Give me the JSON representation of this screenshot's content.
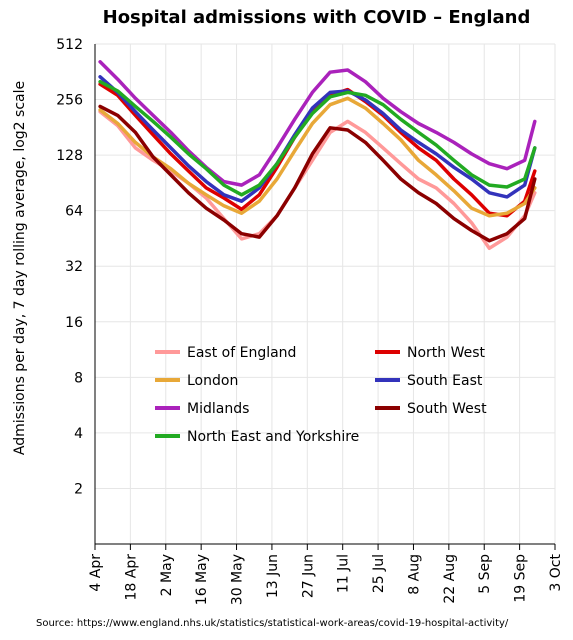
{
  "chart_data": {
    "type": "line",
    "title": "Hospital admissions with COVID – England",
    "ylabel": "Admissions per day, 7 day rolling average, log2 scale",
    "xlabel": "",
    "source": "Source: https://www.england.nhs.uk/statistics/statistical-work-areas/covid-19-hospital-activity/",
    "y_scale": "log2",
    "ylim": [
      1,
      512
    ],
    "y_ticks": [
      2,
      4,
      8,
      16,
      32,
      64,
      128,
      256,
      512
    ],
    "x_ticks": [
      "4 Apr",
      "18 Apr",
      "2 May",
      "16 May",
      "30 May",
      "13 Jun",
      "27 Jun",
      "11 Jul",
      "25 Jul",
      "8 Aug",
      "22 Aug",
      "5 Sep",
      "19 Sep",
      "3 Oct"
    ],
    "xlim": [
      "4 Apr",
      "3 Oct"
    ],
    "grid": true,
    "legend_placement": "center",
    "x": [
      "6 Apr",
      "13 Apr",
      "20 Apr",
      "27 Apr",
      "4 May",
      "11 May",
      "18 May",
      "25 May",
      "1 Jun",
      "8 Jun",
      "15 Jun",
      "22 Jun",
      "29 Jun",
      "6 Jul",
      "13 Jul",
      "20 Jul",
      "27 Jul",
      "3 Aug",
      "10 Aug",
      "17 Aug",
      "24 Aug",
      "31 Aug",
      "7 Sep",
      "14 Sep",
      "21 Sep",
      "25 Sep"
    ],
    "series": [
      {
        "name": "East of England",
        "color": "#ff9999",
        "values": [
          220,
          185,
          140,
          120,
          105,
          90,
          75,
          58,
          45,
          48,
          60,
          85,
          120,
          170,
          195,
          170,
          140,
          115,
          95,
          85,
          70,
          55,
          40,
          46,
          60,
          80
        ]
      },
      {
        "name": "North West",
        "color": "#dd0000",
        "values": [
          310,
          270,
          210,
          165,
          130,
          105,
          85,
          75,
          65,
          78,
          110,
          160,
          220,
          270,
          290,
          250,
          210,
          170,
          140,
          120,
          95,
          78,
          62,
          60,
          72,
          105
        ]
      },
      {
        "name": "London",
        "color": "#e8a838",
        "values": [
          225,
          190,
          150,
          125,
          108,
          90,
          78,
          68,
          62,
          72,
          95,
          135,
          190,
          240,
          260,
          230,
          190,
          155,
          120,
          100,
          82,
          66,
          60,
          62,
          70,
          85
        ]
      },
      {
        "name": "South East",
        "color": "#3333bb",
        "values": [
          340,
          280,
          220,
          175,
          140,
          112,
          92,
          78,
          72,
          85,
          115,
          165,
          230,
          280,
          285,
          255,
          215,
          175,
          150,
          130,
          110,
          95,
          80,
          76,
          88,
          140
        ]
      },
      {
        "name": "Midlands",
        "color": "#aa22bb",
        "values": [
          410,
          330,
          260,
          210,
          170,
          135,
          110,
          92,
          88,
          100,
          140,
          200,
          280,
          360,
          370,
          320,
          260,
          220,
          190,
          170,
          150,
          130,
          115,
          108,
          120,
          195
        ]
      },
      {
        "name": "South West",
        "color": "#8b0000",
        "values": [
          235,
          210,
          170,
          125,
          100,
          80,
          66,
          57,
          48,
          46,
          60,
          85,
          130,
          180,
          175,
          150,
          120,
          95,
          80,
          70,
          58,
          50,
          44,
          48,
          58,
          95
        ]
      },
      {
        "name": "North East and Yorkshire",
        "color": "#22aa22",
        "values": [
          320,
          285,
          235,
          195,
          160,
          130,
          108,
          88,
          78,
          88,
          115,
          160,
          215,
          265,
          280,
          270,
          240,
          200,
          170,
          145,
          120,
          100,
          88,
          86,
          95,
          140
        ]
      }
    ]
  },
  "legend_columns": [
    [
      "East of England",
      "London",
      "Midlands",
      "North East and Yorkshire"
    ],
    [
      "North West",
      "South East",
      "South West"
    ]
  ]
}
